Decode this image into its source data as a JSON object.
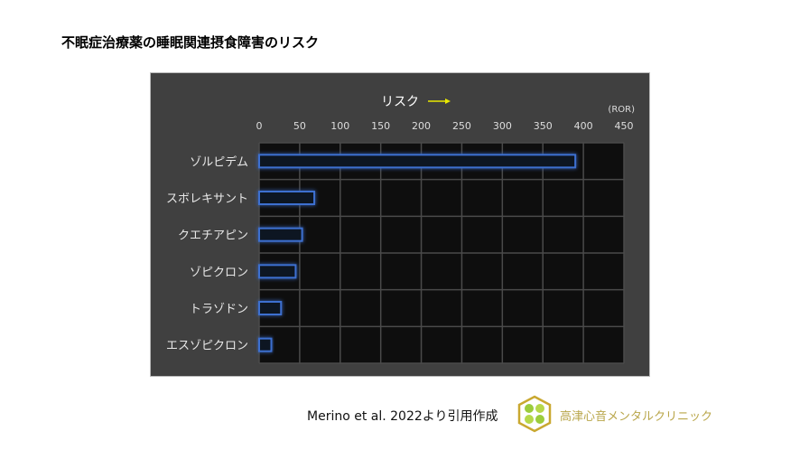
{
  "title": "不眠症治療薬の睡眠関連摂食障害のリスク",
  "chart_data": {
    "type": "bar",
    "orientation": "horizontal",
    "title": "リスク",
    "unit_label": "(ROR)",
    "categories": [
      "ゾルピデム",
      "スボレキサント",
      "クエチアピン",
      "ゾピクロン",
      "トラゾドン",
      "エスゾピクロン"
    ],
    "values": [
      390,
      68,
      53,
      45,
      27,
      15
    ],
    "xlim": [
      0,
      450
    ],
    "x_ticks": [
      "0",
      "50",
      "100",
      "150",
      "200",
      "250",
      "300",
      "350",
      "400",
      "450"
    ],
    "grid": true,
    "colors": {
      "bar_edge": "#3d6fd0",
      "plot_bg": "#0e0e0e",
      "panel_bg": "#404040",
      "arrow": "#e8e800"
    }
  },
  "citation": "Merino et al. 2022より引用作成",
  "clinic_name": "高津心音メンタルクリニック"
}
